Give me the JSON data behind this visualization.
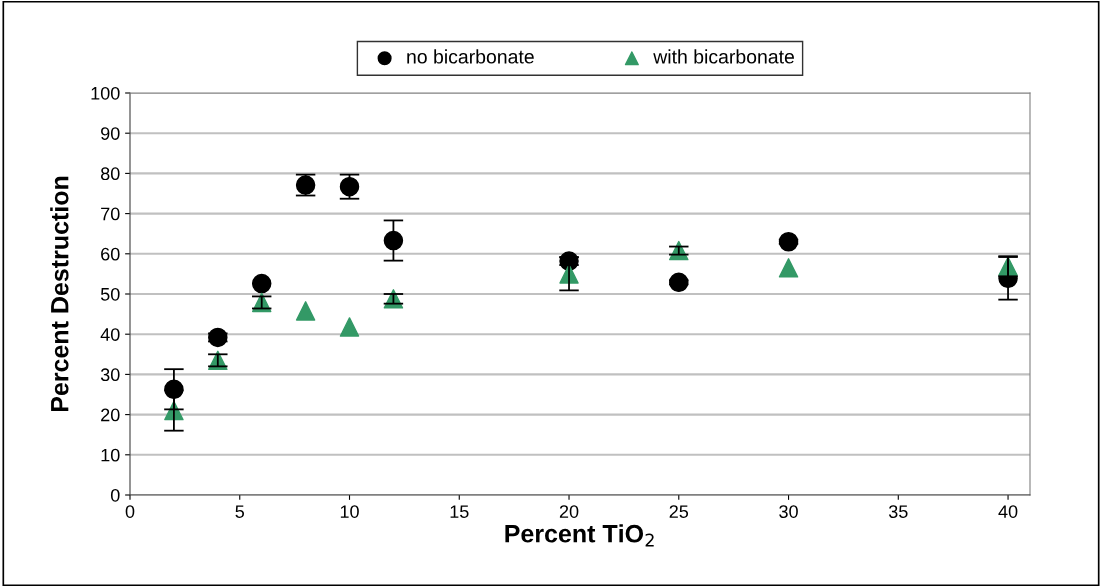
{
  "chart_data": {
    "type": "scatter",
    "xlabel": "Percent TiO$_{2}$",
    "ylabel": "Percent Destruction",
    "xlim": [
      0,
      41
    ],
    "xticks": [
      0,
      5,
      10,
      15,
      20,
      25,
      30,
      35,
      40
    ],
    "ylim": [
      0,
      100
    ],
    "yticks": [
      0,
      10,
      20,
      30,
      40,
      50,
      60,
      70,
      80,
      90,
      100
    ],
    "grid": "y",
    "legend": "top",
    "series": [
      {
        "name": "no bicarbonate",
        "color": "#000000",
        "marker": "circle",
        "x": [
          2,
          4,
          6,
          8,
          10,
          12,
          20,
          25,
          30,
          40
        ],
        "values": [
          26.3,
          39.2,
          52.6,
          77.1,
          76.7,
          63.3,
          58.2,
          52.9,
          63,
          53.9
        ],
        "errors": [
          5,
          1,
          null,
          2.6,
          3,
          5,
          1,
          0.5,
          0.5,
          5.3
        ]
      },
      {
        "name": "with bicarbonate",
        "color": "#339966",
        "marker": "triangle",
        "x": [
          2,
          4,
          6,
          8,
          10,
          12,
          20,
          25,
          30,
          40
        ],
        "values": [
          21,
          33.5,
          47.9,
          45.8,
          41.8,
          48.8,
          55,
          60.8,
          56.5,
          56.9
        ],
        "errors": [
          5,
          1.5,
          1.5,
          null,
          null,
          1.2,
          4.1,
          1,
          null,
          2.5
        ]
      }
    ]
  }
}
